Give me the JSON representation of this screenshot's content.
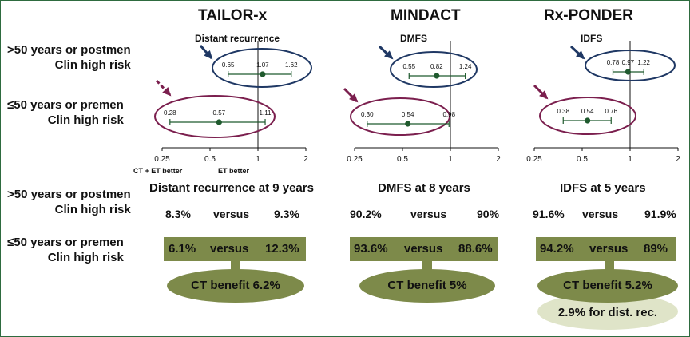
{
  "row_labels": {
    "top_line1": ">50 years or postmen",
    "top_line2": "Clin high risk",
    "bottom_line1": "≤50 years or premen",
    "bottom_line2": "Clin high risk"
  },
  "colors": {
    "green_box": "#7d8a4a",
    "light_pill": "#dfe4c8",
    "navy": "#1f3864",
    "maroon": "#7b1f4e",
    "point": "#1f5a2e",
    "frame": "#2e6b3f"
  },
  "chart_data": [
    {
      "type": "forest",
      "title": "TAILOR-x",
      "subtitle": "Distant recurrence",
      "x_ticks": [
        "0.25",
        "0.5",
        "1",
        "2"
      ],
      "xlim": [
        0.25,
        2
      ],
      "x_scale": "log",
      "x_axis_notes": [
        "CT + ET better",
        "ET better"
      ],
      "rows": [
        {
          "group": ">50 years or postmen, Clin high risk",
          "low": 0.65,
          "point": 1.07,
          "high": 1.62,
          "low_label": "0.65",
          "point_label": "1.07",
          "high_label": "1.62",
          "ellipse": "navy"
        },
        {
          "group": "≤50 years or premen, Clin high risk",
          "low": 0.28,
          "point": 0.57,
          "high": 1.11,
          "low_label": "0.28",
          "point_label": "0.57",
          "high_label": "1.11",
          "ellipse": "maroon"
        }
      ],
      "results": {
        "heading": "Distant recurrence at 9 years",
        "top": {
          "a": "8.3%",
          "vs": "versus",
          "b": "9.3%"
        },
        "bottom": {
          "a": "6.1%",
          "vs": "versus",
          "b": "12.3%"
        },
        "benefit": "CT benefit 6.2%"
      }
    },
    {
      "type": "forest",
      "title": "MINDACT",
      "subtitle": "DMFS",
      "x_ticks": [
        "0.25",
        "0.5",
        "1",
        "2"
      ],
      "xlim": [
        0.25,
        2
      ],
      "x_scale": "log",
      "rows": [
        {
          "group": ">50 years or postmen, Clin high risk",
          "low": 0.55,
          "point": 0.82,
          "high": 1.24,
          "low_label": "0.55",
          "point_label": "0.82",
          "high_label": "1.24",
          "ellipse": "navy"
        },
        {
          "group": "≤50 years or premen, Clin high risk",
          "low": 0.3,
          "point": 0.54,
          "high": 0.98,
          "low_label": "0.30",
          "point_label": "0.54",
          "high_label": "0.98",
          "ellipse": "maroon"
        }
      ],
      "results": {
        "heading": "DMFS at 8 years",
        "top": {
          "a": "90.2%",
          "vs": "versus",
          "b": "90%"
        },
        "bottom": {
          "a": "93.6%",
          "vs": "versus",
          "b": "88.6%"
        },
        "benefit": "CT benefit 5%"
      }
    },
    {
      "type": "forest",
      "title": "Rx-PONDER",
      "subtitle": "IDFS",
      "x_ticks": [
        "0.25",
        "0.5",
        "1",
        "2"
      ],
      "xlim": [
        0.25,
        2
      ],
      "x_scale": "log",
      "rows": [
        {
          "group": ">50 years or postmen, Clin high risk",
          "low": 0.78,
          "point": 0.97,
          "high": 1.22,
          "low_label": "0.78",
          "point_label": "0.97",
          "high_label": "1.22",
          "ellipse": "navy"
        },
        {
          "group": "≤50 years or premen, Clin high risk",
          "low": 0.38,
          "point": 0.54,
          "high": 0.76,
          "low_label": "0.38",
          "point_label": "0.54",
          "high_label": "0.76",
          "ellipse": "maroon"
        }
      ],
      "results": {
        "heading": "IDFS at 5 years",
        "top": {
          "a": "91.6%",
          "vs": "versus",
          "b": "91.9%"
        },
        "bottom": {
          "a": "94.2%",
          "vs": "versus",
          "b": "89%"
        },
        "benefit": "CT benefit 5.2%",
        "extra": "2.9% for dist. rec."
      }
    }
  ]
}
